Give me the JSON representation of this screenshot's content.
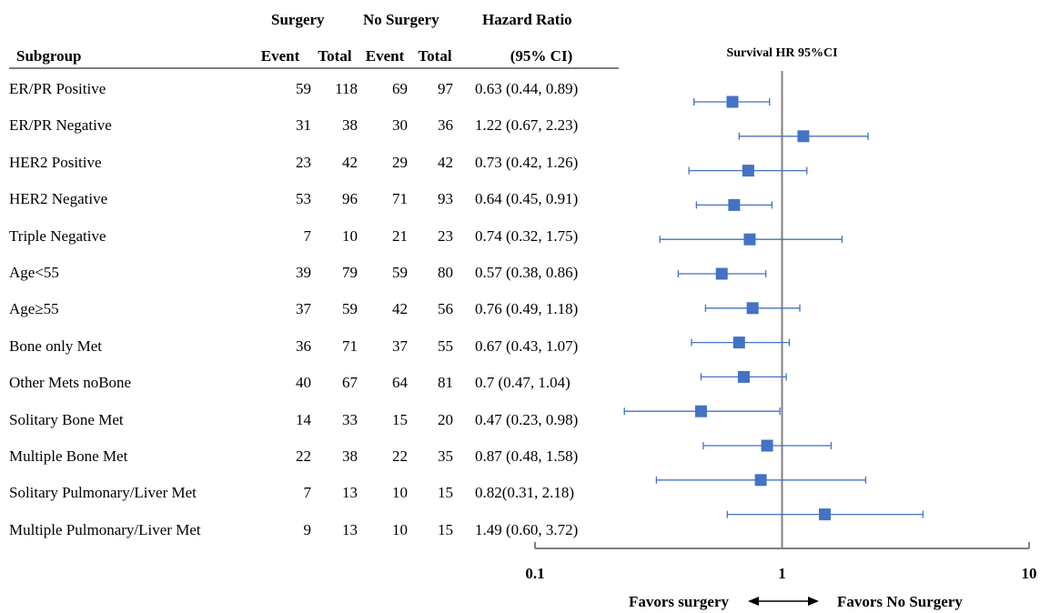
{
  "table": {
    "group_surgery": "Surgery",
    "group_no_surgery": "No Surgery",
    "hr_title": "Hazard Ratio",
    "col_subgroup": "Subgroup",
    "col_event": "Event",
    "col_total": "Total",
    "col_ci": "(95% CI)"
  },
  "chart_data": {
    "type": "forest",
    "title": "Survival HR 95%CI",
    "x_scale": "log",
    "xlim": [
      0.1,
      10
    ],
    "reference_line": 1,
    "xticks": [
      "0.1",
      "1",
      "10"
    ],
    "left_note": "Favors surgery",
    "right_note": "Favors No Surgery",
    "marker_color": "#4472c4",
    "rows": [
      {
        "label": "ER/PR Positive",
        "s_event": "59",
        "s_total": "118",
        "n_event": "69",
        "n_total": "97",
        "ci_text": "0.63 (0.44, 0.89)",
        "hr": 0.63,
        "lo": 0.44,
        "hi": 0.89
      },
      {
        "label": "ER/PR Negative",
        "s_event": "31",
        "s_total": "38",
        "n_event": "30",
        "n_total": "36",
        "ci_text": "1.22 (0.67, 2.23)",
        "hr": 1.22,
        "lo": 0.67,
        "hi": 2.23
      },
      {
        "label": "HER2 Positive",
        "s_event": "23",
        "s_total": "42",
        "n_event": "29",
        "n_total": "42",
        "ci_text": "0.73 (0.42, 1.26)",
        "hr": 0.73,
        "lo": 0.42,
        "hi": 1.26
      },
      {
        "label": "HER2 Negative",
        "s_event": "53",
        "s_total": "96",
        "n_event": "71",
        "n_total": "93",
        "ci_text": "0.64 (0.45, 0.91)",
        "hr": 0.64,
        "lo": 0.45,
        "hi": 0.91
      },
      {
        "label": "Triple Negative",
        "s_event": "7",
        "s_total": "10",
        "n_event": "21",
        "n_total": "23",
        "ci_text": "0.74 (0.32, 1.75)",
        "hr": 0.74,
        "lo": 0.32,
        "hi": 1.75
      },
      {
        "label": "Age<55",
        "s_event": "39",
        "s_total": "79",
        "n_event": "59",
        "n_total": "80",
        "ci_text": "0.57 (0.38, 0.86)",
        "hr": 0.57,
        "lo": 0.38,
        "hi": 0.86
      },
      {
        "label": "Age≥55",
        "s_event": "37",
        "s_total": "59",
        "n_event": "42",
        "n_total": "56",
        "ci_text": "0.76 (0.49, 1.18)",
        "hr": 0.76,
        "lo": 0.49,
        "hi": 1.18
      },
      {
        "label": "Bone only Met",
        "s_event": "36",
        "s_total": "71",
        "n_event": "37",
        "n_total": "55",
        "ci_text": "0.67 (0.43, 1.07)",
        "hr": 0.67,
        "lo": 0.43,
        "hi": 1.07
      },
      {
        "label": "Other Mets noBone",
        "s_event": "40",
        "s_total": "67",
        "n_event": "64",
        "n_total": "81",
        "ci_text": "0.7 (0.47, 1.04)",
        "hr": 0.7,
        "lo": 0.47,
        "hi": 1.04
      },
      {
        "label": "Solitary Bone Met",
        "s_event": "14",
        "s_total": "33",
        "n_event": "15",
        "n_total": "20",
        "ci_text": "0.47 (0.23, 0.98)",
        "hr": 0.47,
        "lo": 0.23,
        "hi": 0.98
      },
      {
        "label": "Multiple Bone Met",
        "s_event": "22",
        "s_total": "38",
        "n_event": "22",
        "n_total": "35",
        "ci_text": "0.87 (0.48, 1.58)",
        "hr": 0.87,
        "lo": 0.48,
        "hi": 1.58
      },
      {
        "label": "Solitary Pulmonary/Liver Met",
        "s_event": "7",
        "s_total": "13",
        "n_event": "10",
        "n_total": "15",
        "ci_text": "0.82(0.31, 2.18)",
        "hr": 0.82,
        "lo": 0.31,
        "hi": 2.18
      },
      {
        "label": "Multiple Pulmonary/Liver Met",
        "s_event": "9",
        "s_total": "13",
        "n_event": "10",
        "n_total": "15",
        "ci_text": "1.49 (0.60, 3.72)",
        "hr": 1.49,
        "lo": 0.6,
        "hi": 3.72
      }
    ]
  }
}
